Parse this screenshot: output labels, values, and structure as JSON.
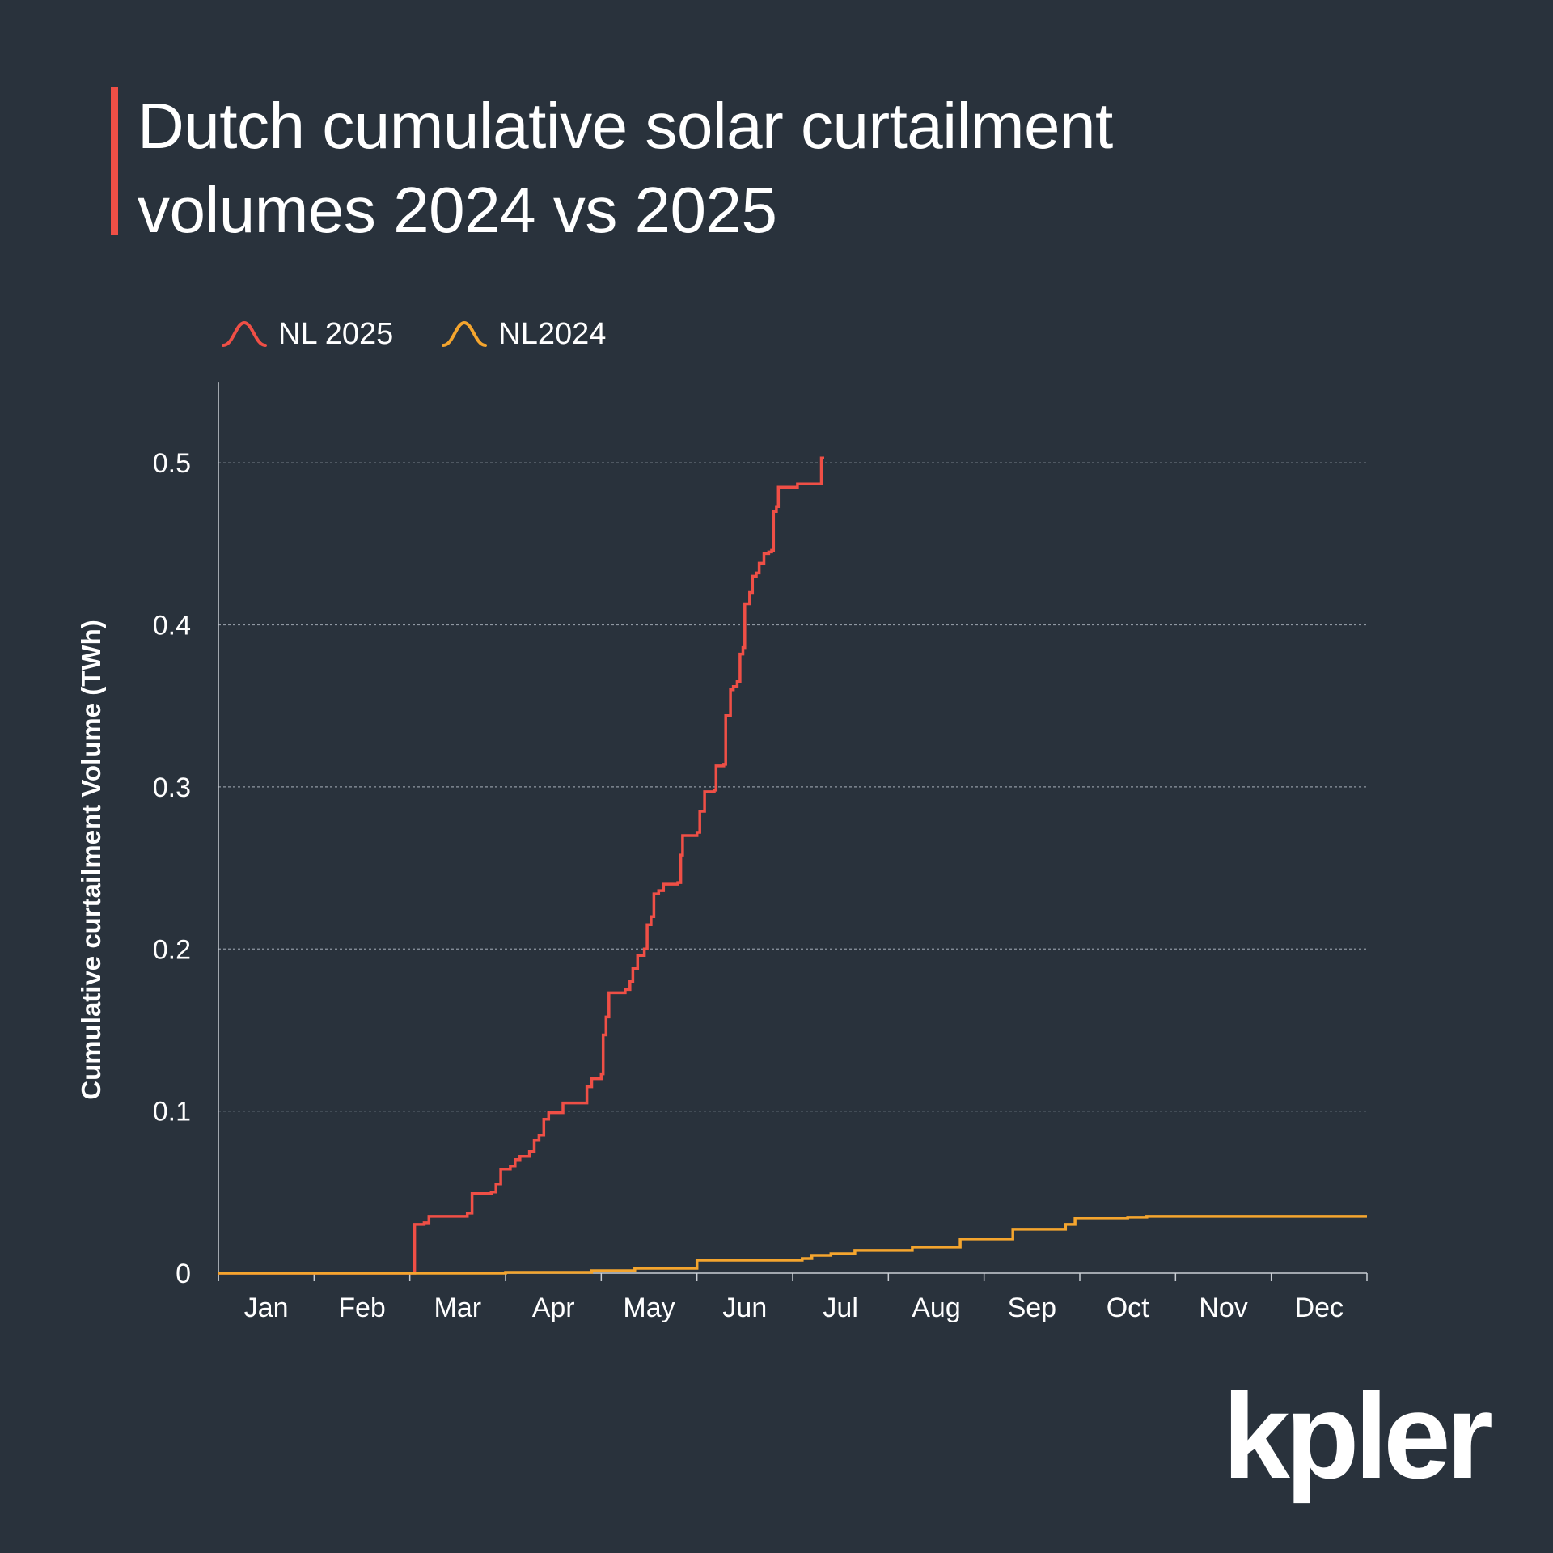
{
  "chart_data": {
    "type": "line",
    "title": "Dutch cumulative solar curtailment volumes 2024 vs 2025",
    "ylabel": "Cumulative curtailment  Volume (TWh)",
    "xlabel": "",
    "ylim": [
      0,
      0.55
    ],
    "yticks": [
      0,
      0.1,
      0.2,
      0.3,
      0.4,
      0.5
    ],
    "ytick_labels": [
      "0",
      "0.1",
      "0.2",
      "0.3",
      "0.4",
      "0.5"
    ],
    "months": [
      "Jan",
      "Feb",
      "Mar",
      "Apr",
      "May",
      "Jun",
      "Jul",
      "Aug",
      "Sep",
      "Oct",
      "Nov",
      "Dec"
    ],
    "grid": "horizontal dashed",
    "legend_position": "top-left",
    "series": [
      {
        "name": "NL 2025",
        "color": "#ef4f46",
        "step": true,
        "points": [
          [
            0.0,
            0
          ],
          [
            2.05,
            0
          ],
          [
            2.05,
            0.03
          ],
          [
            2.15,
            0.031
          ],
          [
            2.2,
            0.035
          ],
          [
            2.5,
            0.035
          ],
          [
            2.6,
            0.037
          ],
          [
            2.65,
            0.049
          ],
          [
            2.85,
            0.05
          ],
          [
            2.9,
            0.055
          ],
          [
            2.95,
            0.064
          ],
          [
            3.05,
            0.066
          ],
          [
            3.1,
            0.07
          ],
          [
            3.15,
            0.072
          ],
          [
            3.25,
            0.075
          ],
          [
            3.3,
            0.082
          ],
          [
            3.35,
            0.085
          ],
          [
            3.4,
            0.095
          ],
          [
            3.45,
            0.099
          ],
          [
            3.6,
            0.099
          ],
          [
            3.6,
            0.105
          ],
          [
            3.8,
            0.105
          ],
          [
            3.85,
            0.115
          ],
          [
            3.9,
            0.12
          ],
          [
            4.0,
            0.123
          ],
          [
            4.02,
            0.147
          ],
          [
            4.05,
            0.158
          ],
          [
            4.08,
            0.173
          ],
          [
            4.25,
            0.175
          ],
          [
            4.3,
            0.18
          ],
          [
            4.33,
            0.188
          ],
          [
            4.38,
            0.196
          ],
          [
            4.45,
            0.2
          ],
          [
            4.48,
            0.215
          ],
          [
            4.52,
            0.22
          ],
          [
            4.55,
            0.234
          ],
          [
            4.6,
            0.236
          ],
          [
            4.65,
            0.24
          ],
          [
            4.8,
            0.241
          ],
          [
            4.83,
            0.258
          ],
          [
            4.85,
            0.27
          ],
          [
            5.0,
            0.272
          ],
          [
            5.03,
            0.285
          ],
          [
            5.08,
            0.297
          ],
          [
            5.18,
            0.298
          ],
          [
            5.2,
            0.313
          ],
          [
            5.28,
            0.314
          ],
          [
            5.3,
            0.344
          ],
          [
            5.35,
            0.36
          ],
          [
            5.38,
            0.362
          ],
          [
            5.42,
            0.365
          ],
          [
            5.45,
            0.382
          ],
          [
            5.48,
            0.386
          ],
          [
            5.5,
            0.413
          ],
          [
            5.55,
            0.42
          ],
          [
            5.58,
            0.43
          ],
          [
            5.62,
            0.432
          ],
          [
            5.65,
            0.438
          ],
          [
            5.7,
            0.444
          ],
          [
            5.75,
            0.445
          ],
          [
            5.78,
            0.446
          ],
          [
            5.8,
            0.47
          ],
          [
            5.83,
            0.473
          ],
          [
            5.85,
            0.485
          ],
          [
            6.05,
            0.485
          ],
          [
            6.05,
            0.487
          ],
          [
            6.28,
            0.487
          ],
          [
            6.3,
            0.503
          ],
          [
            6.33,
            0.503
          ]
        ]
      },
      {
        "name": "NL2024",
        "color": "#f4a52e",
        "step": true,
        "points": [
          [
            0.0,
            0
          ],
          [
            3.0,
            0
          ],
          [
            3.0,
            0.0005
          ],
          [
            3.9,
            0.0005
          ],
          [
            3.9,
            0.0015
          ],
          [
            4.35,
            0.0015
          ],
          [
            4.35,
            0.003
          ],
          [
            5.0,
            0.003
          ],
          [
            5.0,
            0.008
          ],
          [
            6.1,
            0.008
          ],
          [
            6.1,
            0.009
          ],
          [
            6.2,
            0.011
          ],
          [
            6.4,
            0.012
          ],
          [
            6.65,
            0.014
          ],
          [
            7.25,
            0.014
          ],
          [
            7.25,
            0.016
          ],
          [
            7.75,
            0.017
          ],
          [
            7.75,
            0.021
          ],
          [
            8.3,
            0.021
          ],
          [
            8.3,
            0.027
          ],
          [
            8.85,
            0.027
          ],
          [
            8.85,
            0.03
          ],
          [
            8.95,
            0.03
          ],
          [
            8.95,
            0.034
          ],
          [
            9.5,
            0.034
          ],
          [
            9.5,
            0.0345
          ],
          [
            9.7,
            0.0345
          ],
          [
            9.7,
            0.035
          ],
          [
            12.0,
            0.035
          ]
        ]
      }
    ]
  },
  "legend": {
    "items": [
      {
        "label": "NL 2025",
        "color": "#ef4f46"
      },
      {
        "label": "NL2024",
        "color": "#f4a52e"
      }
    ]
  },
  "brand": {
    "logo_text": "kpler"
  }
}
